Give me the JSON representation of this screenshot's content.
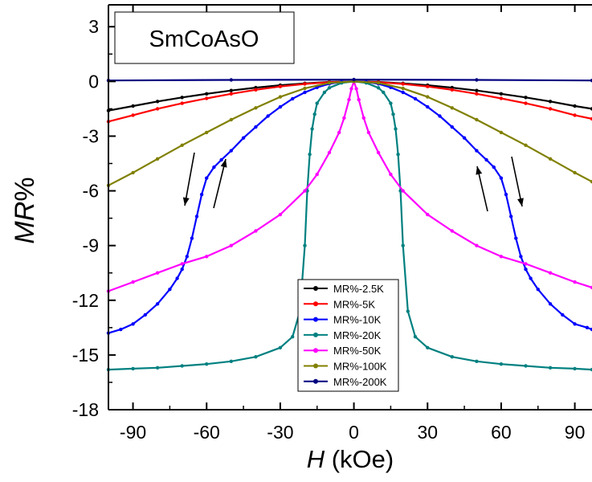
{
  "chart_data": {
    "type": "line",
    "title": "SmCoAsO",
    "xlabel_italic": "H",
    "xlabel_rest": " (kOe)",
    "ylabel_italic": "MR",
    "ylabel_rest": "%",
    "xlim": [
      -100,
      97
    ],
    "ylim": [
      -18,
      4.2
    ],
    "xticks": [
      -90,
      -60,
      -30,
      0,
      30,
      60,
      90
    ],
    "yticks": [
      3,
      0,
      -3,
      -6,
      -9,
      -12,
      -15,
      -18
    ],
    "grid": false,
    "legend_position": "bottom-center",
    "annotations": [
      "down-arrow-left",
      "up-arrow-left",
      "up-arrow-right",
      "down-arrow-right"
    ],
    "series": [
      {
        "name": "MR%-2.5K",
        "color": "#000000",
        "x": [
          -100,
          -90,
          -80,
          -70,
          -60,
          -50,
          -40,
          -30,
          -20,
          -10,
          0,
          10,
          20,
          30,
          40,
          50,
          60,
          70,
          80,
          90,
          97
        ],
        "y": [
          -1.6,
          -1.35,
          -1.1,
          -0.88,
          -0.68,
          -0.5,
          -0.34,
          -0.21,
          -0.11,
          -0.03,
          0,
          -0.03,
          -0.11,
          -0.21,
          -0.34,
          -0.5,
          -0.68,
          -0.88,
          -1.1,
          -1.35,
          -1.5
        ]
      },
      {
        "name": "MR%-5K",
        "color": "#ff0000",
        "x": [
          -100,
          -90,
          -80,
          -70,
          -60,
          -50,
          -40,
          -30,
          -20,
          -10,
          0,
          10,
          20,
          30,
          40,
          50,
          60,
          70,
          80,
          90,
          97
        ],
        "y": [
          -2.2,
          -1.85,
          -1.5,
          -1.2,
          -0.93,
          -0.68,
          -0.46,
          -0.28,
          -0.14,
          -0.04,
          0,
          -0.04,
          -0.14,
          -0.28,
          -0.46,
          -0.68,
          -0.93,
          -1.2,
          -1.5,
          -1.85,
          -2.05
        ]
      },
      {
        "name": "MR%-10K",
        "color": "#0000ff",
        "x": [
          -100,
          -95,
          -90,
          -85,
          -80,
          -75,
          -72,
          -70,
          -68,
          -66,
          -64,
          -62,
          -60,
          -57,
          -54,
          -50,
          -45,
          -40,
          -35,
          -30,
          -25,
          -20,
          -15,
          -10,
          -5,
          0,
          5,
          10,
          15,
          20,
          25,
          30,
          35,
          40,
          45,
          50,
          54,
          57,
          60,
          62,
          64,
          66,
          68,
          70,
          72,
          75,
          80,
          85,
          90,
          95,
          97
        ],
        "y": [
          -13.8,
          -13.6,
          -13.3,
          -12.8,
          -12.2,
          -11.4,
          -10.8,
          -10.3,
          -9.6,
          -8.6,
          -7.4,
          -6.2,
          -5.3,
          -4.7,
          -4.3,
          -3.8,
          -3.1,
          -2.5,
          -1.9,
          -1.4,
          -0.95,
          -0.6,
          -0.33,
          -0.13,
          -0.03,
          0,
          -0.03,
          -0.13,
          -0.33,
          -0.6,
          -0.95,
          -1.4,
          -1.9,
          -2.5,
          -3.1,
          -3.8,
          -4.3,
          -4.7,
          -5.3,
          -6.2,
          -7.4,
          -8.6,
          -9.6,
          -10.3,
          -10.8,
          -11.4,
          -12.2,
          -12.8,
          -13.3,
          -13.5,
          -13.6
        ]
      },
      {
        "name": "MR%-20K",
        "color": "#008080",
        "x": [
          -100,
          -90,
          -80,
          -70,
          -60,
          -50,
          -40,
          -30,
          -25,
          -22,
          -20,
          -19,
          -18,
          -17,
          -16,
          -15,
          -12,
          -10,
          -5,
          0,
          5,
          10,
          12,
          15,
          16,
          17,
          18,
          19,
          20,
          22,
          25,
          30,
          40,
          50,
          60,
          70,
          80,
          90,
          97
        ],
        "y": [
          -15.8,
          -15.75,
          -15.7,
          -15.6,
          -15.5,
          -15.35,
          -15.1,
          -14.6,
          -14.0,
          -12.6,
          -9.0,
          -6.0,
          -4.0,
          -2.6,
          -1.8,
          -1.2,
          -0.6,
          -0.35,
          -0.08,
          0,
          -0.08,
          -0.35,
          -0.6,
          -1.2,
          -1.8,
          -2.6,
          -4.0,
          -6.0,
          -9.0,
          -12.6,
          -14.0,
          -14.6,
          -15.1,
          -15.35,
          -15.5,
          -15.6,
          -15.7,
          -15.75,
          -15.8
        ]
      },
      {
        "name": "MR%-50K",
        "color": "#ff00ff",
        "x": [
          -100,
          -90,
          -80,
          -70,
          -60,
          -50,
          -40,
          -30,
          -20,
          -15,
          -10,
          -6,
          -4,
          -2,
          -1,
          0,
          1,
          2,
          4,
          6,
          10,
          15,
          20,
          30,
          40,
          50,
          60,
          70,
          80,
          90,
          97
        ],
        "y": [
          -11.5,
          -11.0,
          -10.5,
          -10.0,
          -9.6,
          -9.0,
          -8.2,
          -7.3,
          -6.0,
          -5.1,
          -3.9,
          -2.8,
          -2.0,
          -1.0,
          -0.4,
          0,
          -0.4,
          -1.0,
          -2.0,
          -2.8,
          -3.9,
          -5.1,
          -6.0,
          -7.3,
          -8.2,
          -9.0,
          -9.6,
          -10.0,
          -10.5,
          -11.0,
          -11.3
        ]
      },
      {
        "name": "MR%-100K",
        "color": "#808000",
        "x": [
          -100,
          -90,
          -80,
          -70,
          -60,
          -50,
          -40,
          -30,
          -20,
          -10,
          0,
          10,
          20,
          30,
          40,
          50,
          60,
          70,
          80,
          90,
          97
        ],
        "y": [
          -5.7,
          -5.0,
          -4.25,
          -3.5,
          -2.8,
          -2.1,
          -1.45,
          -0.85,
          -0.38,
          -0.08,
          0,
          -0.08,
          -0.38,
          -0.85,
          -1.45,
          -2.1,
          -2.8,
          -3.5,
          -4.25,
          -5.0,
          -5.5
        ]
      },
      {
        "name": "MR%-200K",
        "color": "#000080",
        "x": [
          -100,
          -50,
          0,
          50,
          97
        ],
        "y": [
          0.05,
          0.08,
          0.1,
          0.08,
          0.05
        ]
      }
    ]
  }
}
